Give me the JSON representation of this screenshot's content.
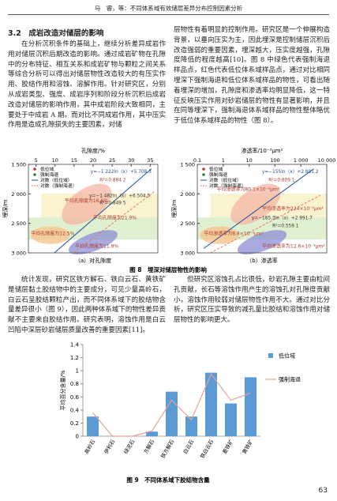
{
  "header": {
    "running_title": "马　睿，等：不同体系域有效储层差异分布控制因素分析",
    "page_number": "63"
  },
  "section": {
    "title": "3.2　成岩改造对储层的影响",
    "paragraphs": [
      "在分析沉积条件的基础上，继续分析差异成岩作用对储层沉积后期改造的影响。通过成岩矿物在孔隙中的分布特征、相互关系和成岩矿物与颗粒之间关系等综合分析可以得出对储层物性改造较大的有压实作用、胶结作用和溶蚀、溶解作用。针对研究区，分别从成岩类型、强度、成岩序列和阶段分析沉积后成岩改造对储层的影响作用，其中成岩阶段大致相同，主要处于中成岩 A 期。而对比不同成岩作用，其中压实作用是造成孔隙损失的主要因素，对储",
      "层物性有着明显的控制作用。研究区是一个伸展构造背景，以垂向压实为主，因此埋深是控制储层沉积后改造强弱的重要因素，埋深越大，压实度越强，孔隙度降低的程度越高[10]。图 8 中绿色代表强制海退样品点，红色代表低位体系域样品点，通过对比相同埋深下强制海退和低位体系域样品的物性，可看出随着埋深的增加，孔隙度和渗透率均明显降低，这一特征反映压实作用对砂岩储层的物性有显著影响，并且在同等埋深下，强制海退体系域样品的物性整体略优于低位体系域样品的物性（图 8）。",
      "统计发现，研究区铁方解石、铁白云石、黄铁矿是储层黏土胶结物中的主要成分，可见少量高岭石，白云石呈胶结颗粒产出，而不同体系域下的胶结物含量差异很小（图 9），因此两种体系域下的物性差异贡献不主要来自胶结作用。研究表明，溶蚀作用是白云凹陷中深层砂岩储层质量改善的重要因素[11]。",
      "但研究区溶蚀孔占比很低，砂岩孔隙主要由粒间孔贡献，长石等溶蚀作用产生的溶蚀孔对孔隙度贡献小，溶蚀作用较弱对储层物性作用不大。通过对比分析，研究区压实导致的减孔量比胶结和溶蚀作用对储层物性的影响更大。"
    ]
  },
  "figure8": {
    "caption": "图 8　埋深对储层物性的影响",
    "panels": [
      {
        "label": "（a）对孔隙度",
        "x_label": "孔隙度/%",
        "y_label": "埋深/m",
        "x_scale": "linear",
        "xlim": [
          3,
          37
        ],
        "ylim": [
          1500,
          3000
        ],
        "xticks": [
          5,
          10,
          15,
          20,
          25,
          30,
          35
        ],
        "yticks": [
          {
            "value": 1500,
            "label": "1 500"
          },
          {
            "value": 2000,
            "label": "2 000"
          },
          {
            "value": 2500,
            "label": "2 500"
          },
          {
            "value": 3000,
            "label": "3 000"
          }
        ],
        "legend": [
          "低位域",
          "强制海退",
          "对数（低位域）",
          "对数（强制海退）"
        ],
        "equations": [
          "y=−1 222ln（x）+5 708.3",
          "R²=0.884 2",
          "y=−1 482ln（x）+6 504.5",
          "R²=0.849 5"
        ],
        "annotations": [
          "平均孔隙度为16.6%",
          "平均孔隙度为21.9%",
          "平均孔隙度为12.5%",
          "平均孔隙度为11.9%"
        ]
      },
      {
        "label": "（b）渗透率",
        "x_label": "渗透率/10⁻³μm²",
        "y_label": "埋深/m",
        "x_scale": "log",
        "xlim": [
          0.1,
          10000
        ],
        "ylim": [
          1500,
          3000
        ],
        "xticks": [
          0.1,
          1,
          10,
          100,
          {
            "value": 1000,
            "label": "1 000"
          },
          {
            "value": 10000,
            "label": "10 000"
          }
        ],
        "yticks": [
          {
            "value": 1500,
            "label": "1 500"
          },
          {
            "value": 2000,
            "label": "2 000"
          },
          {
            "value": 2500,
            "label": "2 500"
          },
          {
            "value": 3000,
            "label": "3 000"
          }
        ],
        "legend": [
          "低位域",
          "强制海退",
          "对数（低位域）",
          "对数（强制海退）"
        ],
        "equations": [
          "y=−155ln（x）+2 881.2",
          "R²=0.809 1",
          "y=−185.3ln（x）+2 991.7",
          "R²=0.559 1"
        ],
        "annotations": [
          "平均渗透率为80.1×10⁻³μm²",
          "平均渗透率为224×10⁻³μm²",
          "平均渗透率为8.8×10⁻³μm²",
          "平均渗透率为12.6×10⁻³μm²"
        ]
      }
    ]
  },
  "chart_data": {
    "type": "bar",
    "caption": "图 9　不同体系域下胶结物含量",
    "y_label": "平均百分含量/%",
    "categories": [
      "高岭石",
      "伊利石",
      "绿泥石",
      "方解石",
      "铁方解石",
      "白云石",
      "铁白云石",
      "菱铁矿",
      "黄铁矿"
    ],
    "series": [
      {
        "name": "低位域",
        "type": "bar",
        "color": "#5b9bd5",
        "values": [
          0.3,
          0,
          0,
          0.07,
          0.68,
          0.3,
          0.97,
          0.5,
          0.9
        ]
      },
      {
        "name": "强制海退",
        "type": "line",
        "color": "#e6a29a",
        "values": [
          0.36,
          0,
          0,
          0.08,
          0.55,
          0.25,
          0.95,
          0.55,
          0.66
        ]
      }
    ],
    "ylim": [
      0,
      1.4
    ],
    "yticks": [
      0,
      0.2,
      0.4,
      0.6,
      0.8,
      1,
      1.2,
      1.4
    ],
    "legend": "right"
  }
}
